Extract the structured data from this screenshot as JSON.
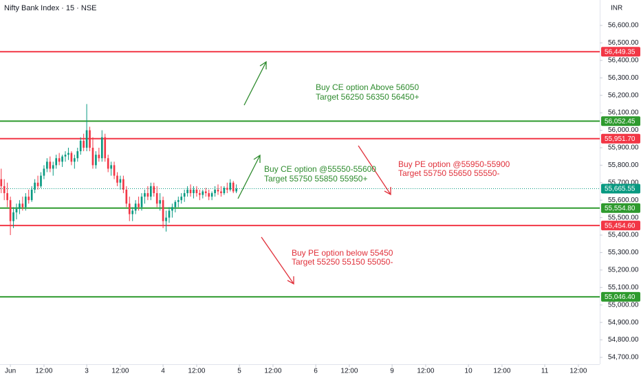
{
  "chart_data": {
    "type": "candlestick",
    "title": "Nifty Bank Index · 15 · NSE",
    "currency": "INR",
    "up_color": "#089981",
    "down_color": "#f23645",
    "ylim": [
      54660.6,
      56745.6
    ],
    "xlim": [
      -0.4,
      196
    ],
    "yticks": [
      {
        "value": 54700,
        "label": "54,700.00"
      },
      {
        "value": 54800,
        "label": "54,800.00"
      },
      {
        "value": 54900,
        "label": "54,900.00"
      },
      {
        "value": 55000,
        "label": "55,000.00"
      },
      {
        "value": 55100,
        "label": "55,100.00"
      },
      {
        "value": 55200,
        "label": "55,200.00"
      },
      {
        "value": 55300,
        "label": "55,300.00"
      },
      {
        "value": 55400,
        "label": "55,400.00"
      },
      {
        "value": 55500,
        "label": "55,500.00"
      },
      {
        "value": 55600,
        "label": "55,600.00"
      },
      {
        "value": 55700,
        "label": "55,700.00"
      },
      {
        "value": 55800,
        "label": "55,800.00"
      },
      {
        "value": 55900,
        "label": "55,900.00"
      },
      {
        "value": 56000,
        "label": "56,000.00"
      },
      {
        "value": 56100,
        "label": "56,100.00"
      },
      {
        "value": 56200,
        "label": "56,200.00"
      },
      {
        "value": 56300,
        "label": "56,300.00"
      },
      {
        "value": 56400,
        "label": "56,400.00"
      },
      {
        "value": 56500,
        "label": "56,500.00"
      },
      {
        "value": 56600,
        "label": "56,600.00"
      }
    ],
    "xticks": [
      {
        "value": 3,
        "label": "Jun"
      },
      {
        "value": 14,
        "label": "12:00"
      },
      {
        "value": 28,
        "label": "3"
      },
      {
        "value": 39,
        "label": "12:00"
      },
      {
        "value": 53,
        "label": "4"
      },
      {
        "value": 64,
        "label": "12:00"
      },
      {
        "value": 78,
        "label": "5"
      },
      {
        "value": 89,
        "label": "12:00"
      },
      {
        "value": 103,
        "label": "6"
      },
      {
        "value": 114,
        "label": "12:00"
      },
      {
        "value": 128,
        "label": "9"
      },
      {
        "value": 139,
        "label": "12:00"
      },
      {
        "value": 153,
        "label": "10"
      },
      {
        "value": 164,
        "label": "12:00"
      },
      {
        "value": 178,
        "label": "11"
      },
      {
        "value": 189,
        "label": "12:00"
      }
    ],
    "levels": [
      {
        "value": 56449.35,
        "label": "56,449.35",
        "color": "#f23645"
      },
      {
        "value": 56052.45,
        "label": "56,052.45",
        "color": "#2e9a2e"
      },
      {
        "value": 55951.7,
        "label": "55,951.70",
        "color": "#f23645"
      },
      {
        "value": 55554.8,
        "label": "55,554.80",
        "color": "#2e9a2e"
      },
      {
        "value": 55454.6,
        "label": "55,454.60",
        "color": "#f23645"
      },
      {
        "value": 55046.4,
        "label": "55,046.40",
        "color": "#2e9a2e"
      }
    ],
    "last_price": {
      "value": 55665.55,
      "label": "55,665.55",
      "color": "#089981"
    },
    "annotations": [
      {
        "lines": [
          "Buy CE option Above 56050",
          "Target 56250 56350 56450+"
        ],
        "color": "#2e8b2e"
      },
      {
        "lines": [
          "Buy CE option @55550-55600",
          "Target 55750 55850 55950+"
        ],
        "color": "#2e8b2e"
      },
      {
        "lines": [
          "Buy PE option @55950-55900",
          "Target 55750 55650 55550-"
        ],
        "color": "#e0303a"
      },
      {
        "lines": [
          "Buy PE option below 55450",
          "Target 55250 55150 55050-"
        ],
        "color": "#e0303a"
      }
    ],
    "ohlc": [
      [
        55720,
        55780,
        55640,
        55680
      ],
      [
        55680,
        55720,
        55600,
        55640
      ],
      [
        55640,
        55700,
        55560,
        55600
      ],
      [
        55600,
        55620,
        55400,
        55480
      ],
      [
        55480,
        55560,
        55440,
        55530
      ],
      [
        55530,
        55580,
        55490,
        55550
      ],
      [
        55550,
        55600,
        55520,
        55580
      ],
      [
        55580,
        55620,
        55540,
        55560
      ],
      [
        55560,
        55640,
        55540,
        55620
      ],
      [
        55620,
        55660,
        55580,
        55600
      ],
      [
        55600,
        55680,
        55590,
        55660
      ],
      [
        55660,
        55720,
        55640,
        55700
      ],
      [
        55700,
        55740,
        55660,
        55680
      ],
      [
        55680,
        55760,
        55670,
        55740
      ],
      [
        55740,
        55800,
        55720,
        55780
      ],
      [
        55780,
        55840,
        55760,
        55820
      ],
      [
        55820,
        55850,
        55760,
        55780
      ],
      [
        55780,
        55820,
        55740,
        55800
      ],
      [
        55800,
        55860,
        55780,
        55840
      ],
      [
        55840,
        55870,
        55800,
        55820
      ],
      [
        55820,
        55860,
        55790,
        55850
      ],
      [
        55850,
        55880,
        55820,
        55860
      ],
      [
        55860,
        55900,
        55830,
        55870
      ],
      [
        55870,
        55880,
        55800,
        55820
      ],
      [
        55820,
        55860,
        55780,
        55840
      ],
      [
        55840,
        55900,
        55820,
        55880
      ],
      [
        55880,
        55960,
        55860,
        55940
      ],
      [
        55940,
        55980,
        55880,
        55900
      ],
      [
        55900,
        56150,
        55880,
        56000
      ],
      [
        56000,
        56020,
        55880,
        55900
      ],
      [
        55900,
        55960,
        55780,
        55800
      ],
      [
        55800,
        55880,
        55780,
        55860
      ],
      [
        55860,
        55900,
        55820,
        55840
      ],
      [
        55840,
        56000,
        55820,
        55960
      ],
      [
        55960,
        55980,
        55820,
        55840
      ],
      [
        55840,
        55860,
        55760,
        55780
      ],
      [
        55780,
        55820,
        55740,
        55800
      ],
      [
        55800,
        55820,
        55720,
        55740
      ],
      [
        55740,
        55760,
        55680,
        55700
      ],
      [
        55700,
        55740,
        55660,
        55720
      ],
      [
        55720,
        55740,
        55640,
        55660
      ],
      [
        55660,
        55680,
        55560,
        55580
      ],
      [
        55580,
        55620,
        55480,
        55520
      ],
      [
        55520,
        55560,
        55480,
        55540
      ],
      [
        55540,
        55600,
        55520,
        55580
      ],
      [
        55580,
        55620,
        55540,
        55560
      ],
      [
        55560,
        55640,
        55540,
        55620
      ],
      [
        55620,
        55660,
        55580,
        55640
      ],
      [
        55640,
        55680,
        55600,
        55620
      ],
      [
        55620,
        55700,
        55600,
        55680
      ],
      [
        55680,
        55700,
        55620,
        55640
      ],
      [
        55640,
        55680,
        55560,
        55580
      ],
      [
        55580,
        55640,
        55540,
        55600
      ],
      [
        55600,
        55620,
        55440,
        55480
      ],
      [
        55480,
        55540,
        55420,
        55500
      ],
      [
        55500,
        55560,
        55470,
        55540
      ],
      [
        55540,
        55580,
        55500,
        55560
      ],
      [
        55560,
        55600,
        55530,
        55590
      ],
      [
        55590,
        55620,
        55560,
        55600
      ],
      [
        55600,
        55640,
        55580,
        55620
      ],
      [
        55620,
        55660,
        55590,
        55640
      ],
      [
        55640,
        55680,
        55620,
        55660
      ],
      [
        55660,
        55690,
        55620,
        55640
      ],
      [
        55640,
        55680,
        55610,
        55660
      ],
      [
        55660,
        55680,
        55620,
        55640
      ],
      [
        55640,
        55660,
        55600,
        55630
      ],
      [
        55630,
        55660,
        55610,
        55650
      ],
      [
        55650,
        55670,
        55620,
        55640
      ],
      [
        55640,
        55660,
        55600,
        55620
      ],
      [
        55620,
        55650,
        55600,
        55640
      ],
      [
        55640,
        55680,
        55620,
        55660
      ],
      [
        55660,
        55690,
        55630,
        55650
      ],
      [
        55650,
        55680,
        55620,
        55640
      ],
      [
        55640,
        55680,
        55630,
        55670
      ],
      [
        55670,
        55700,
        55640,
        55660
      ],
      [
        55660,
        55720,
        55650,
        55700
      ],
      [
        55700,
        55710,
        55640,
        55650
      ],
      [
        55650,
        55690,
        55640,
        55665.55
      ]
    ]
  }
}
